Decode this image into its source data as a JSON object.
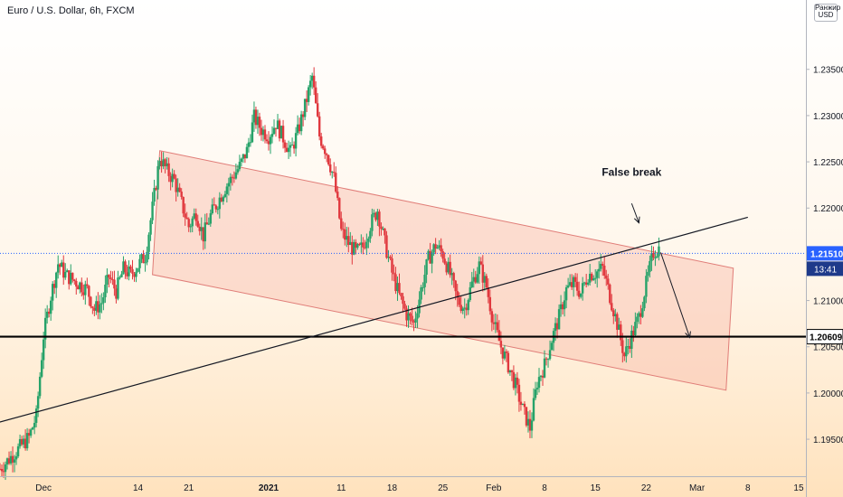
{
  "header": {
    "title": "Euro / U.S. Dollar, 6h, FXCM",
    "currency_top": "Ранжир",
    "currency": "USD"
  },
  "colors": {
    "up": "#26a269",
    "down": "#e0383e",
    "channel_fill": "#f7b7a8",
    "channel_stroke": "#e07d78",
    "trendline": "#131722",
    "support": "#000000",
    "price_tag": "#2962ff",
    "countdown_tag": "#1e3a8a"
  },
  "chart_data": {
    "type": "candlestick",
    "title": "Euro / U.S. Dollar, 6h, FXCM",
    "symbol": "EURUSD",
    "timeframe": "6h",
    "source": "FXCM",
    "x_axis": {
      "ticks": [
        "Dec",
        "14",
        "21",
        "2021",
        "11",
        "18",
        "25",
        "Feb",
        "8",
        "15",
        "22",
        "Mar",
        "8",
        "15"
      ],
      "range": [
        "2020-11-25",
        "2021-03-16"
      ]
    },
    "y_axis": {
      "ticks": [
        "1.23500",
        "1.23000",
        "1.22500",
        "1.22000",
        "1.21500",
        "1.21000",
        "1.20500",
        "1.20000",
        "1.19500"
      ],
      "range": [
        1.191,
        1.2425
      ],
      "position": "right"
    },
    "ohlc_path": [
      [
        "2020-11-25",
        1.1918
      ],
      [
        "2020-11-27",
        1.1935
      ],
      [
        "2020-11-29",
        1.1952
      ],
      [
        "2020-11-30",
        1.1975
      ],
      [
        "2020-12-01",
        1.2062
      ],
      [
        "2020-12-02",
        1.2105
      ],
      [
        "2020-12-03",
        1.214
      ],
      [
        "2020-12-04",
        1.2128
      ],
      [
        "2020-12-07",
        1.2112
      ],
      [
        "2020-12-08",
        1.209
      ],
      [
        "2020-12-09",
        1.2098
      ],
      [
        "2020-12-10",
        1.2126
      ],
      [
        "2020-12-11",
        1.211
      ],
      [
        "2020-12-12",
        1.2134
      ],
      [
        "2020-12-13",
        1.2128
      ],
      [
        "2020-12-15",
        1.2148
      ],
      [
        "2020-12-16",
        1.22
      ],
      [
        "2020-12-17",
        1.2255
      ],
      [
        "2020-12-18",
        1.224
      ],
      [
        "2020-12-19",
        1.223
      ],
      [
        "2020-12-20",
        1.2205
      ],
      [
        "2020-12-21",
        1.218
      ],
      [
        "2020-12-22",
        1.2195
      ],
      [
        "2020-12-23",
        1.217
      ],
      [
        "2020-12-24",
        1.2192
      ],
      [
        "2020-12-26",
        1.2222
      ],
      [
        "2020-12-28",
        1.2245
      ],
      [
        "2020-12-29",
        1.2262
      ],
      [
        "2020-12-30",
        1.2298
      ],
      [
        "2020-12-31",
        1.2285
      ],
      [
        "2021-01-01",
        1.2278
      ],
      [
        "2021-01-02",
        1.2292
      ],
      [
        "2021-01-04",
        1.226
      ],
      [
        "2021-01-05",
        1.2282
      ],
      [
        "2021-01-06",
        1.231
      ],
      [
        "2021-01-07",
        1.2342
      ],
      [
        "2021-01-08",
        1.2278
      ],
      [
        "2021-01-09",
        1.226
      ],
      [
        "2021-01-10",
        1.2232
      ],
      [
        "2021-01-11",
        1.2175
      ],
      [
        "2021-01-12",
        1.2162
      ],
      [
        "2021-01-13",
        1.2152
      ],
      [
        "2021-01-14",
        1.2158
      ],
      [
        "2021-01-15",
        1.2182
      ],
      [
        "2021-01-16",
        1.2198
      ],
      [
        "2021-01-17",
        1.2162
      ],
      [
        "2021-01-18",
        1.213
      ],
      [
        "2021-01-19",
        1.2105
      ],
      [
        "2021-01-20",
        1.2085
      ],
      [
        "2021-01-21",
        1.2075
      ],
      [
        "2021-01-22",
        1.2112
      ],
      [
        "2021-01-23",
        1.2145
      ],
      [
        "2021-01-24",
        1.216
      ],
      [
        "2021-01-25",
        1.215
      ],
      [
        "2021-01-26",
        1.2128
      ],
      [
        "2021-01-27",
        1.21
      ],
      [
        "2021-01-28",
        1.2092
      ],
      [
        "2021-01-29",
        1.2118
      ],
      [
        "2021-01-30",
        1.2138
      ],
      [
        "2021-01-31",
        1.2115
      ],
      [
        "2021-02-01",
        1.2075
      ],
      [
        "2021-02-02",
        1.205
      ],
      [
        "2021-02-03",
        1.203
      ],
      [
        "2021-02-04",
        1.2008
      ],
      [
        "2021-02-05",
        1.1982
      ],
      [
        "2021-02-06",
        1.1962
      ],
      [
        "2021-02-07",
        1.2012
      ],
      [
        "2021-02-08",
        1.203
      ],
      [
        "2021-02-09",
        1.2058
      ],
      [
        "2021-02-10",
        1.2082
      ],
      [
        "2021-02-11",
        1.2112
      ],
      [
        "2021-02-12",
        1.2118
      ],
      [
        "2021-02-13",
        1.2108
      ],
      [
        "2021-02-14",
        1.2128
      ],
      [
        "2021-02-15",
        1.213
      ],
      [
        "2021-02-16",
        1.2135
      ],
      [
        "2021-02-17",
        1.2105
      ],
      [
        "2021-02-18",
        1.2075
      ],
      [
        "2021-02-19",
        1.204
      ],
      [
        "2021-02-20",
        1.2062
      ],
      [
        "2021-02-21",
        1.2082
      ],
      [
        "2021-02-22",
        1.2118
      ],
      [
        "2021-02-23",
        1.2152
      ],
      [
        "2021-02-24",
        1.2158
      ]
    ],
    "annotations": [
      {
        "type": "price_line",
        "label": "1.20609",
        "value": 1.20609
      },
      {
        "type": "last_price",
        "label": "1.21510",
        "value": 1.2151
      },
      {
        "type": "countdown",
        "label": "13:41"
      },
      {
        "type": "text",
        "label": "False break",
        "date": "2021-02-20",
        "value": 1.2235
      },
      {
        "type": "trendline",
        "points": [
          [
            "2020-11-21",
            1.196
          ],
          [
            "2021-03-08",
            1.219
          ]
        ]
      },
      {
        "type": "channel",
        "points": [
          [
            "2020-12-17",
            1.2262
          ],
          [
            "2021-03-06",
            1.2135
          ],
          [
            "2021-03-05",
            1.2003
          ],
          [
            "2020-12-16",
            1.2128
          ]
        ]
      },
      {
        "type": "arrow",
        "from": [
          "2021-02-20",
          1.2205
        ],
        "to": [
          "2021-02-21",
          1.2184
        ]
      },
      {
        "type": "arrow",
        "from": [
          "2021-02-24",
          1.2152
        ],
        "to": [
          "2021-02-28",
          1.206
        ]
      }
    ],
    "grid": false,
    "legend": "none"
  }
}
